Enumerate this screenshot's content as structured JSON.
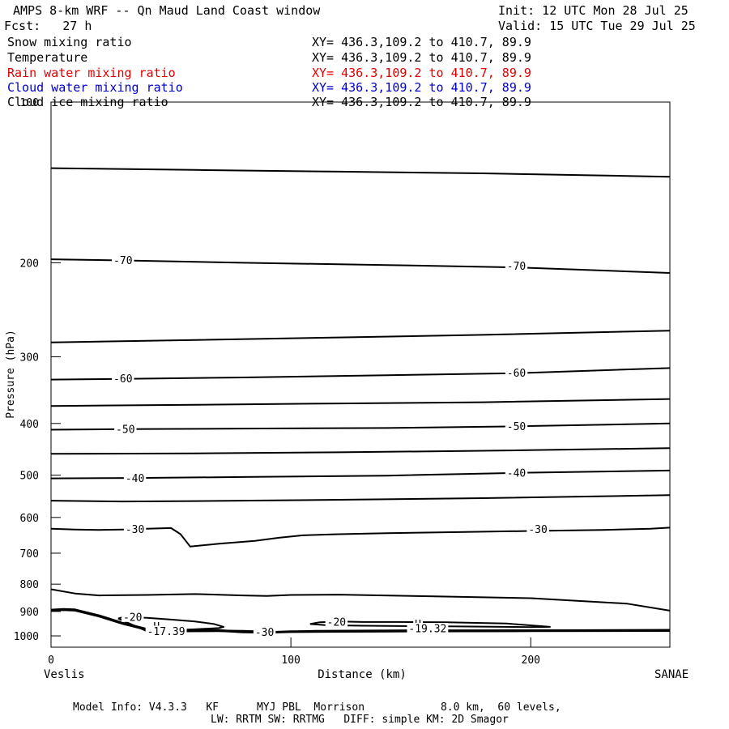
{
  "header": {
    "title_left": "AMPS 8-km WRF -- Qn Maud Land Coast window",
    "init": "Init: 12 UTC Mon 28 Jul 25",
    "fcst": "Fcst:   27 h",
    "valid": "Valid: 15 UTC Tue 29 Jul 25"
  },
  "fields": [
    {
      "name": "Snow mixing ratio",
      "xy": "XY= 436.3,109.2 to 410.7, 89.9",
      "color": "#000000"
    },
    {
      "name": "Temperature",
      "xy": "XY= 436.3,109.2 to 410.7, 89.9",
      "color": "#000000"
    },
    {
      "name": "Rain water mixing ratio",
      "xy": "XY= 436.3,109.2 to 410.7, 89.9",
      "color": "#e00000"
    },
    {
      "name": "Cloud water mixing ratio",
      "xy": "XY= 436.3,109.2 to 410.7, 89.9",
      "color": "#0000cc"
    },
    {
      "name": "Cloud ice mixing ratio",
      "xy": "XY= 436.3,109.2 to 410.7, 89.9",
      "color": "#000000"
    }
  ],
  "footer": {
    "line1": "Model Info: V4.3.3   KF      MYJ PBL  Morrison            8.0 km,  60 levels,",
    "line2": "LW: RRTM SW: RRTMG   DIFF: simple KM: 2D Smagor"
  },
  "chart_data": {
    "type": "line",
    "xlabel": "Distance (km)",
    "ylabel": "Pressure (hPa)",
    "xlim": [
      0,
      258
    ],
    "ylim": [
      100,
      1050
    ],
    "y_scale": "log",
    "x_ticks": [
      0,
      100,
      200
    ],
    "y_ticks": [
      100,
      200,
      300,
      400,
      500,
      600,
      700,
      800,
      900,
      1000
    ],
    "left_endpoint": "Veslis",
    "right_endpoint": "SANAE",
    "contour_labels": [
      {
        "text": "-70",
        "x": 30,
        "p": 198
      },
      {
        "text": "-70",
        "x": 194,
        "p": 203
      },
      {
        "text": "-60",
        "x": 30,
        "p": 330
      },
      {
        "text": "-60",
        "x": 194,
        "p": 322
      },
      {
        "text": "-50",
        "x": 31,
        "p": 410
      },
      {
        "text": "-50",
        "x": 194,
        "p": 405
      },
      {
        "text": "-40",
        "x": 35,
        "p": 507
      },
      {
        "text": "-40",
        "x": 194,
        "p": 495
      },
      {
        "text": "-30",
        "x": 35,
        "p": 632
      },
      {
        "text": "-30",
        "x": 203,
        "p": 632
      },
      {
        "text": "-30",
        "x": 89,
        "p": 985
      },
      {
        "text": "-20",
        "x": 34,
        "p": 922
      },
      {
        "text": "-20",
        "x": 119,
        "p": 943
      },
      {
        "text": "H",
        "x": 44,
        "p": 960
      },
      {
        "text": "-17.39",
        "x": 48,
        "p": 981
      },
      {
        "text": "H",
        "x": 153,
        "p": 950
      },
      {
        "text": "-19.32",
        "x": 157,
        "p": 969
      }
    ],
    "contours": [
      {
        "x": [
          0,
          60,
          120,
          180,
          258
        ],
        "p": [
          133,
          134,
          135,
          136,
          138
        ]
      },
      {
        "x": [
          0,
          30,
          80,
          140,
          194,
          258
        ],
        "p": [
          197,
          198,
          200,
          202,
          204,
          209
        ]
      },
      {
        "x": [
          0,
          60,
          120,
          180,
          258
        ],
        "p": [
          282,
          279,
          276,
          273,
          268
        ]
      },
      {
        "x": [
          0,
          30,
          80,
          140,
          194,
          258
        ],
        "p": [
          331,
          330,
          328,
          325,
          322,
          315
        ]
      },
      {
        "x": [
          0,
          60,
          120,
          180,
          258
        ],
        "p": [
          371,
          369,
          367,
          365,
          360
        ]
      },
      {
        "x": [
          0,
          31,
          80,
          140,
          194,
          258
        ],
        "p": [
          411,
          410,
          409,
          408,
          405,
          400
        ]
      },
      {
        "x": [
          0,
          60,
          120,
          180,
          258
        ],
        "p": [
          456,
          455,
          453,
          450,
          445
        ]
      },
      {
        "x": [
          0,
          35,
          80,
          140,
          194,
          258
        ],
        "p": [
          507,
          506,
          504,
          501,
          495,
          490
        ]
      },
      {
        "x": [
          0,
          30,
          60,
          120,
          180,
          258
        ],
        "p": [
          558,
          560,
          559,
          556,
          552,
          545
        ]
      },
      {
        "x": [
          0,
          10,
          20,
          30,
          40,
          50,
          54,
          58,
          70,
          85,
          95,
          105,
          120,
          140,
          170,
          200,
          230,
          250,
          258
        ],
        "p": [
          630,
          632,
          633,
          632,
          630,
          628,
          645,
          680,
          672,
          664,
          655,
          648,
          645,
          642,
          639,
          636,
          633,
          630,
          627
        ]
      },
      {
        "x": [
          0,
          10,
          20,
          40,
          60,
          80,
          90,
          100,
          120,
          160,
          200,
          240,
          258
        ],
        "p": [
          818,
          833,
          840,
          838,
          835,
          840,
          842,
          838,
          837,
          843,
          850,
          870,
          897
        ]
      },
      {
        "x": [
          0,
          5,
          10,
          20,
          30,
          40,
          50,
          60,
          70,
          80,
          90,
          100,
          150,
          200,
          258
        ],
        "p": [
          893,
          890,
          892,
          915,
          945,
          970,
          980,
          975,
          975,
          982,
          984,
          980,
          978,
          976,
          974
        ]
      },
      {
        "x": [
          0,
          5,
          10,
          20,
          30,
          40,
          50,
          60,
          70,
          80,
          90,
          100,
          150,
          200,
          258
        ],
        "p": [
          898,
          895,
          897,
          920,
          950,
          975,
          983,
          979,
          979,
          985,
          987,
          984,
          981,
          979,
          977
        ]
      },
      {
        "x": [
          45,
          60,
          80,
          95,
          110,
          150,
          200,
          258
        ],
        "p": [
          978,
          976,
          978,
          983,
          978,
          976,
          976,
          976
        ]
      },
      {
        "x": [
          50,
          70,
          95,
          130,
          200,
          258
        ],
        "p": [
          981,
          980,
          983,
          982,
          980,
          979
        ]
      },
      {
        "x": [
          28,
          30,
          40,
          50,
          60,
          68,
          72,
          70,
          60,
          40,
          28
        ],
        "p": [
          928,
          922,
          925,
          932,
          940,
          950,
          962,
          967,
          972,
          980,
          928
        ]
      },
      {
        "x": [
          108,
          112,
          120,
          130,
          145,
          165,
          190,
          208,
          200,
          170,
          130,
          115,
          108
        ],
        "p": [
          950,
          943,
          940,
          942,
          942,
          943,
          948,
          962,
          963,
          960,
          957,
          955,
          950
        ]
      }
    ]
  }
}
